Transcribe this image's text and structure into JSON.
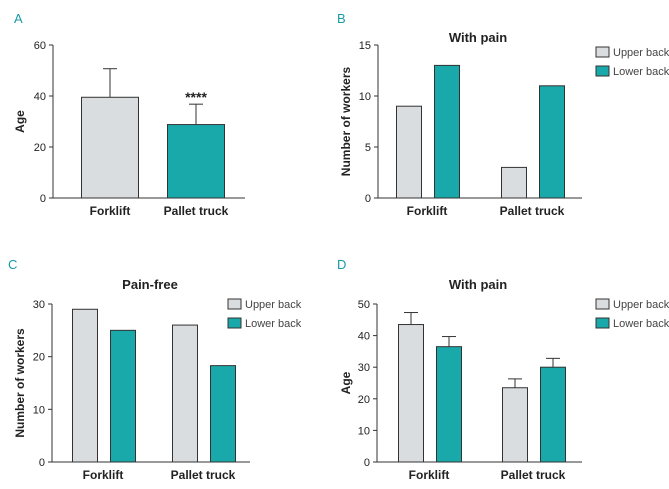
{
  "colors": {
    "upper_back": "#d9dde0",
    "lower_back": "#1aa9aa",
    "axis": "#333333"
  },
  "chart_data": [
    {
      "panel": "A",
      "type": "bar",
      "title": "",
      "xlabel": "",
      "ylabel": "Age",
      "categories": [
        "Forklift",
        "Pallet truck"
      ],
      "values": [
        39.5,
        28.8
      ],
      "errors": [
        11.2,
        8.0
      ],
      "bar_colors": [
        "#d9dde0",
        "#1aa9aa"
      ],
      "annotations": [
        "",
        "****"
      ],
      "ylim": [
        0,
        60
      ],
      "yticks": [
        0,
        20,
        40,
        60
      ],
      "grid": false,
      "legend": null
    },
    {
      "panel": "B",
      "type": "bar",
      "title": "With pain",
      "xlabel": "",
      "ylabel": "Number of workers",
      "categories": [
        "Forklift",
        "Pallet truck"
      ],
      "series": [
        {
          "name": "Upper back",
          "values": [
            9,
            3
          ],
          "color": "#d9dde0"
        },
        {
          "name": "Lower back",
          "values": [
            13,
            11
          ],
          "color": "#1aa9aa"
        }
      ],
      "ylim": [
        0,
        15
      ],
      "yticks": [
        0,
        5,
        10,
        15
      ],
      "grid": false,
      "legend": "top-right"
    },
    {
      "panel": "C",
      "type": "bar",
      "title": "Pain-free",
      "xlabel": "",
      "ylabel": "Number of workers",
      "categories": [
        "Forklift",
        "Pallet truck"
      ],
      "series": [
        {
          "name": "Upper back",
          "values": [
            29,
            26
          ],
          "color": "#d9dde0"
        },
        {
          "name": "Lower back",
          "values": [
            25,
            18.3
          ],
          "color": "#1aa9aa"
        }
      ],
      "ylim": [
        0,
        30
      ],
      "yticks": [
        0,
        10,
        20,
        30
      ],
      "grid": false,
      "legend": "top-right"
    },
    {
      "panel": "D",
      "type": "bar",
      "title": "With pain",
      "xlabel": "",
      "ylabel": "Age",
      "categories": [
        "Forklift",
        "Pallet truck"
      ],
      "series": [
        {
          "name": "Upper back",
          "values": [
            43.5,
            23.5
          ],
          "errors": [
            3.8,
            2.8
          ],
          "color": "#d9dde0"
        },
        {
          "name": "Lower back",
          "values": [
            36.5,
            30.0
          ],
          "errors": [
            3.2,
            2.8
          ],
          "color": "#1aa9aa"
        }
      ],
      "ylim": [
        0,
        50
      ],
      "yticks": [
        0,
        10,
        20,
        30,
        40,
        50
      ],
      "grid": false,
      "legend": "top-right"
    }
  ]
}
